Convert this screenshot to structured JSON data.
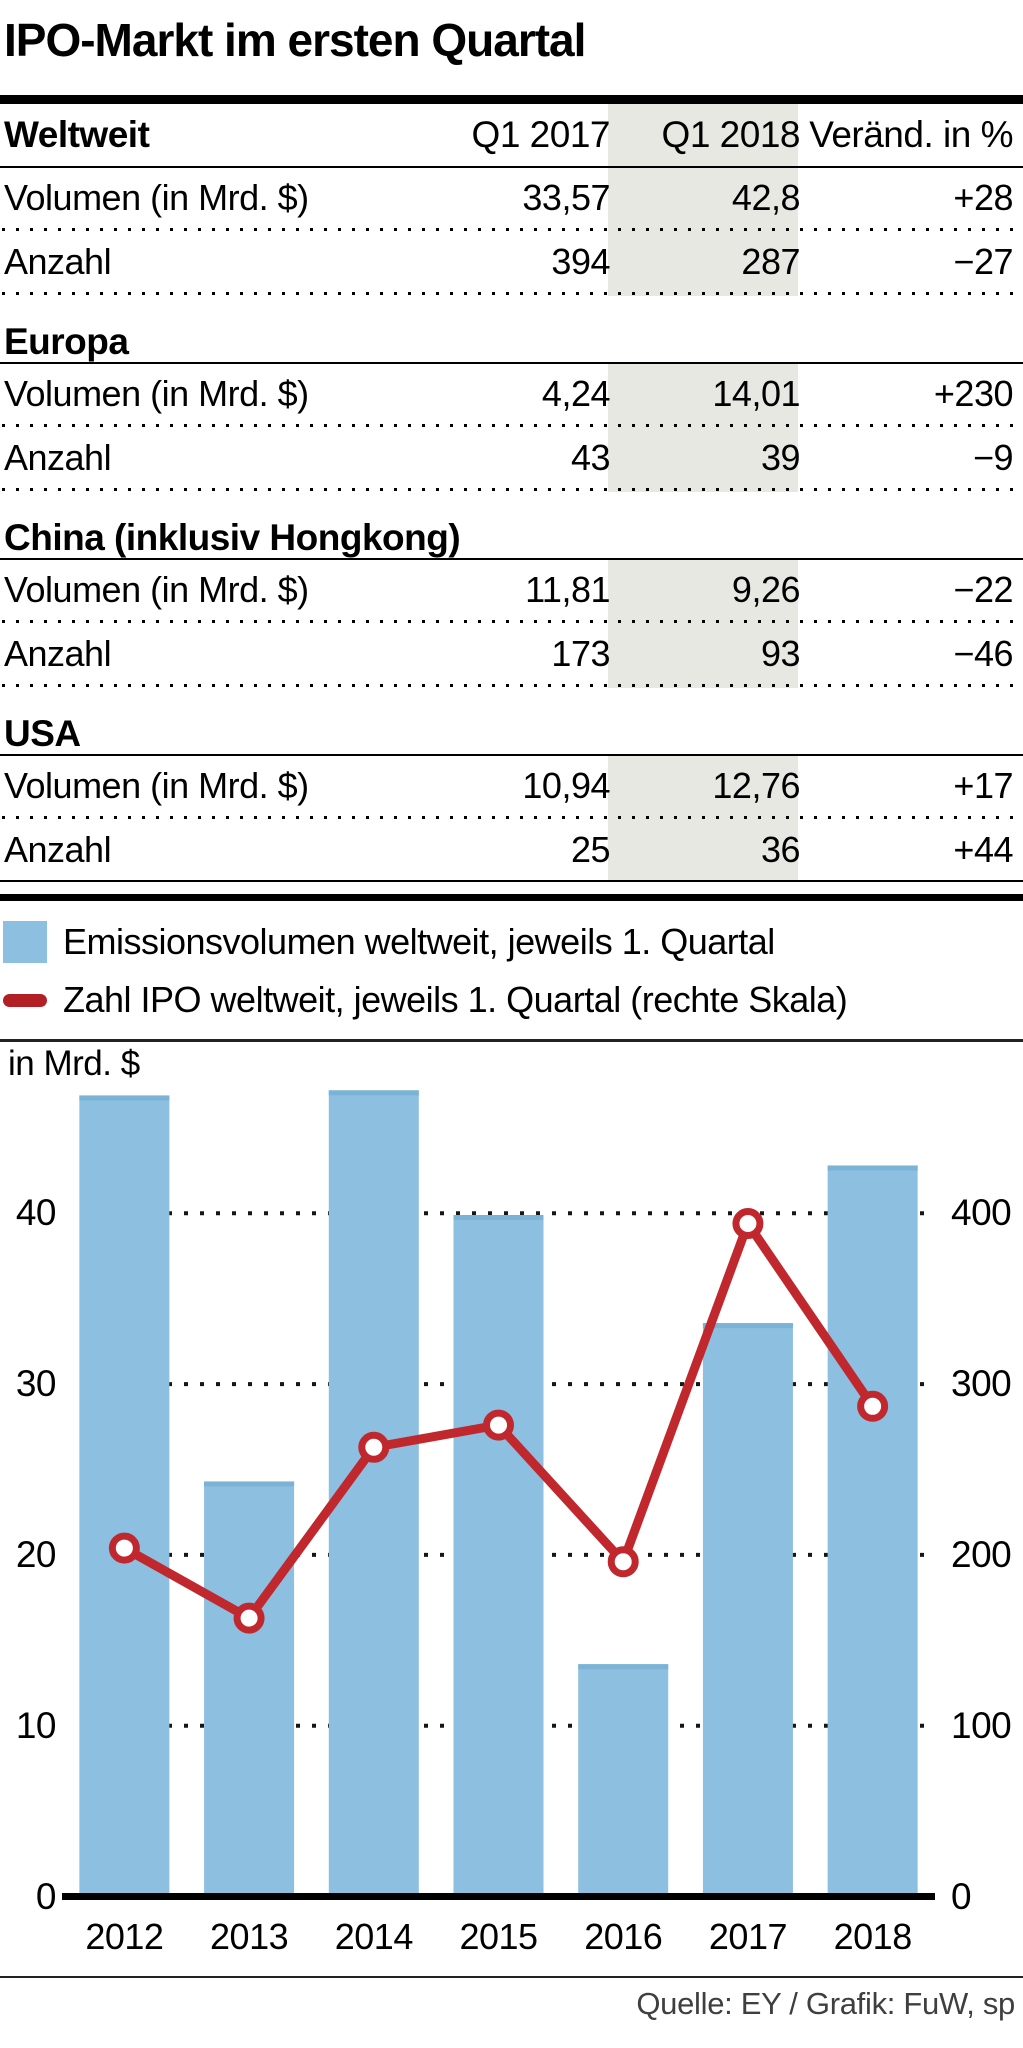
{
  "title": "IPO-Markt im ersten Quartal",
  "table": {
    "columns": [
      "Q1 2017",
      "Q1 2018",
      "Veränd. in %"
    ],
    "highlighted_column": "Q1 2018",
    "sections": [
      {
        "name": "Weltweit",
        "rows": [
          {
            "label": "Volumen (in Mrd. $)",
            "q1_2017": "33,57",
            "q1_2018": "42,8",
            "change": "+28"
          },
          {
            "label": "Anzahl",
            "q1_2017": "394",
            "q1_2018": "287",
            "change": "−27"
          }
        ]
      },
      {
        "name": "Europa",
        "rows": [
          {
            "label": "Volumen (in Mrd. $)",
            "q1_2017": "4,24",
            "q1_2018": "14,01",
            "change": "+230"
          },
          {
            "label": "Anzahl",
            "q1_2017": "43",
            "q1_2018": "39",
            "change": "−9"
          }
        ]
      },
      {
        "name": "China (inklusiv Hongkong)",
        "rows": [
          {
            "label": "Volumen (in Mrd. $)",
            "q1_2017": "11,81",
            "q1_2018": "9,26",
            "change": "−22"
          },
          {
            "label": "Anzahl",
            "q1_2017": "173",
            "q1_2018": "93",
            "change": "−46"
          }
        ]
      },
      {
        "name": "USA",
        "rows": [
          {
            "label": "Volumen (in Mrd. $)",
            "q1_2017": "10,94",
            "q1_2018": "12,76",
            "change": "+17"
          },
          {
            "label": "Anzahl",
            "q1_2017": "25",
            "q1_2018": "36",
            "change": "+44"
          }
        ]
      }
    ]
  },
  "legend": {
    "items": [
      {
        "swatch": "bar",
        "label": "Emissionsvolumen weltweit, jeweils 1. Quartal"
      },
      {
        "swatch": "line",
        "label": "Zahl IPO weltweit, jeweils 1. Quartal (rechte Skala)"
      }
    ]
  },
  "chart_data": {
    "type": "bar+line",
    "categories": [
      "2012",
      "2013",
      "2014",
      "2015",
      "2016",
      "2017",
      "2018"
    ],
    "series": [
      {
        "name": "Emissionsvolumen weltweit, jeweils 1. Quartal",
        "type": "bar",
        "axis": "left",
        "unit": "Mrd. $",
        "values": [
          46.9,
          24.3,
          47.2,
          39.9,
          13.6,
          33.57,
          42.8
        ]
      },
      {
        "name": "Zahl IPO weltweit, jeweils 1. Quartal (rechte Skala)",
        "type": "line",
        "axis": "right",
        "unit": "IPOs",
        "values": [
          204,
          163,
          263,
          276,
          196,
          394,
          287
        ]
      }
    ],
    "left_axis": {
      "label": "in Mrd. $",
      "ticks": [
        0,
        10,
        20,
        30,
        40
      ],
      "range": [
        0,
        47.7
      ]
    },
    "right_axis": {
      "ticks": [
        0,
        100,
        200,
        300,
        400
      ],
      "range": [
        0,
        477
      ]
    },
    "grid": "dotted horizontal gridlines, drawn behind bars",
    "legend_position": "above chart"
  },
  "footer": {
    "source": "Quelle: EY / Grafik: FuW, sp"
  },
  "colors": {
    "bar": "#8cbfe0",
    "bar_cap": "#7ab3d6",
    "line": "#c0282e",
    "legend_line": "#b22026",
    "marker_fill": "#ffffff",
    "column_band": "#e8e8e3",
    "rule": "#000000",
    "footer_text": "#3f3f3f"
  }
}
